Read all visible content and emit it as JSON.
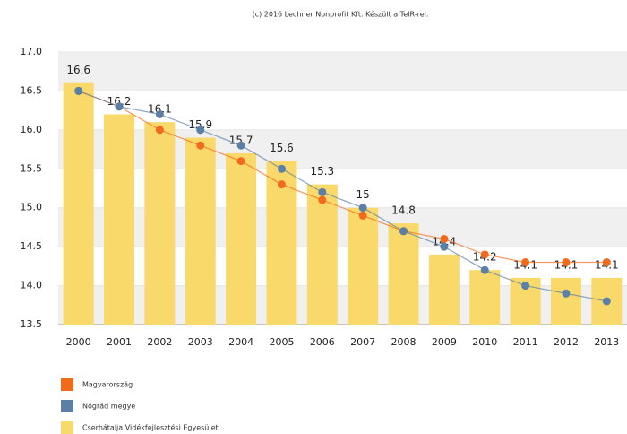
{
  "chart_data": {
    "type": "bar",
    "title": "(c) 2016 Lechner Nonprofit Kft. Készült a TeIR-rel.",
    "categories": [
      "2000",
      "2001",
      "2002",
      "2003",
      "2004",
      "2005",
      "2006",
      "2007",
      "2008",
      "2009",
      "2010",
      "2011",
      "2012",
      "2013"
    ],
    "series": [
      {
        "name": "Magyarország",
        "type": "line",
        "color": "#f26b1d",
        "values": [
          16.5,
          16.3,
          16.0,
          15.8,
          15.6,
          15.3,
          15.1,
          14.9,
          14.7,
          14.6,
          14.4,
          14.3,
          14.3,
          14.3
        ]
      },
      {
        "name": "Nógrád megye",
        "type": "line",
        "color": "#5b7fa6",
        "values": [
          16.5,
          16.3,
          16.2,
          16.0,
          15.8,
          15.5,
          15.2,
          15.0,
          14.7,
          14.5,
          14.2,
          14.0,
          13.9,
          13.8
        ]
      },
      {
        "name": "Cserhátalja Vidékfejlesztési Egyesület",
        "type": "bar",
        "color": "#f9d96a",
        "values": [
          16.6,
          16.2,
          16.1,
          15.9,
          15.7,
          15.6,
          15.3,
          15,
          14.8,
          14.4,
          14.2,
          14.1,
          14.1,
          14.1
        ]
      }
    ],
    "ylim": [
      13.5,
      17.0
    ],
    "yticks": [
      {
        "value": 17.0,
        "label": "17.0"
      },
      16.5,
      {
        "value": 16.0,
        "label": "16.0"
      },
      15.5,
      {
        "value": 15.0,
        "label": "15.0"
      },
      14.5,
      {
        "value": 14.0,
        "label": "14.0"
      },
      13.5
    ]
  }
}
